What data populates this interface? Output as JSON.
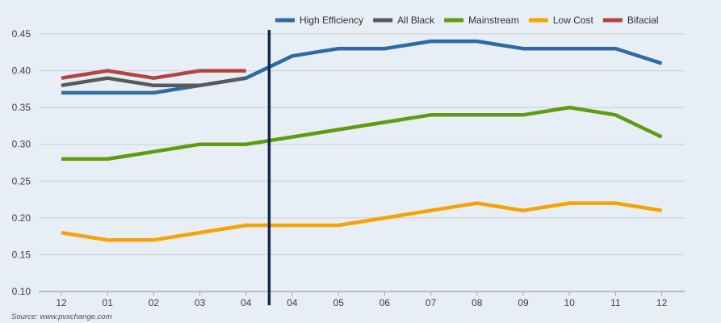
{
  "chart_data": {
    "type": "line",
    "title": "",
    "xlabel": "",
    "ylabel": "",
    "ylim": [
      0.1,
      0.45
    ],
    "y_ticks": [
      "0.10",
      "0.15",
      "0.20",
      "0.25",
      "0.30",
      "0.35",
      "0.40",
      "0.45"
    ],
    "grid": true,
    "legend_position": "top-right",
    "categories": [
      "12",
      "01",
      "02",
      "03",
      "04",
      "04",
      "05",
      "06",
      "07",
      "08",
      "09",
      "10",
      "11",
      "12"
    ],
    "divider_after_index": 4,
    "series": [
      {
        "name": "High Efficiency",
        "color": "#2e6aa3",
        "values": [
          0.37,
          0.37,
          0.37,
          0.38,
          0.39,
          0.42,
          0.43,
          0.43,
          0.44,
          0.44,
          0.43,
          0.43,
          0.43,
          0.41
        ]
      },
      {
        "name": "All Black",
        "color": "#595959",
        "values": [
          0.38,
          0.39,
          0.38,
          0.38,
          0.39,
          null,
          null,
          null,
          null,
          null,
          null,
          null,
          null,
          null
        ]
      },
      {
        "name": "Mainstream",
        "color": "#5e9c0f",
        "values": [
          0.28,
          0.28,
          0.29,
          0.3,
          0.3,
          0.31,
          0.32,
          0.33,
          0.34,
          0.34,
          0.34,
          0.35,
          0.34,
          0.31
        ]
      },
      {
        "name": "Low Cost",
        "color": "#f5a400",
        "values": [
          0.18,
          0.17,
          0.17,
          0.18,
          0.19,
          0.19,
          0.19,
          0.2,
          0.21,
          0.22,
          0.21,
          0.22,
          0.22,
          0.21
        ]
      },
      {
        "name": "Bifacial",
        "color": "#b3443e",
        "values": [
          0.39,
          0.4,
          0.39,
          0.4,
          0.4,
          null,
          null,
          null,
          null,
          null,
          null,
          null,
          null,
          null
        ]
      }
    ]
  },
  "source": "Source: www.pvxchange.com"
}
